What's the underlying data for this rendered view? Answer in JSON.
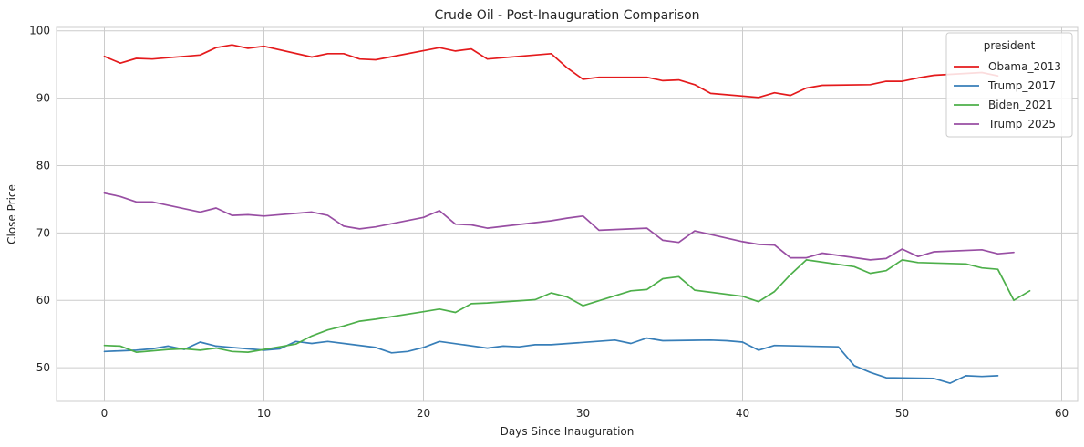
{
  "chart_data": {
    "type": "line",
    "title": "Crude Oil - Post-Inauguration Comparison",
    "xlabel": "Days Since Inauguration",
    "ylabel": "Close Price",
    "xlim": [
      -3,
      61
    ],
    "ylim": [
      45,
      100.5
    ],
    "xticks": [
      0,
      10,
      20,
      30,
      40,
      50,
      60
    ],
    "yticks": [
      50,
      60,
      70,
      80,
      90,
      100
    ],
    "grid": true,
    "legend": {
      "title": "president",
      "placement": "top-right"
    },
    "series": [
      {
        "name": "Obama_2013",
        "color": "#e41a1c",
        "x": [
          0,
          1,
          2,
          3,
          4,
          5,
          6,
          7,
          8,
          9,
          10,
          13,
          14,
          15,
          16,
          17,
          21,
          22,
          23,
          24,
          28,
          29,
          30,
          31,
          34,
          35,
          36,
          37,
          38,
          41,
          42,
          43,
          44,
          45,
          48,
          49,
          50,
          51,
          52,
          55,
          56
        ],
        "y": [
          96.2,
          95.2,
          95.9,
          95.8,
          96.0,
          96.2,
          96.4,
          97.5,
          97.9,
          97.4,
          97.7,
          96.1,
          96.6,
          96.6,
          95.8,
          95.7,
          97.5,
          97.0,
          97.3,
          95.8,
          96.6,
          94.5,
          92.8,
          93.1,
          93.1,
          92.6,
          92.7,
          92.0,
          90.7,
          90.1,
          90.8,
          90.4,
          91.5,
          91.9,
          92.0,
          92.5,
          92.5,
          93.0,
          93.4,
          93.8,
          93.3
        ]
      },
      {
        "name": "Trump_2017",
        "color": "#377eb8",
        "x": [
          0,
          1,
          2,
          3,
          4,
          5,
          6,
          7,
          10,
          11,
          12,
          13,
          14,
          17,
          18,
          19,
          20,
          21,
          24,
          25,
          26,
          27,
          28,
          32,
          33,
          34,
          35,
          38,
          39,
          40,
          41,
          42,
          46,
          47,
          48,
          49,
          52,
          53,
          54,
          55,
          56
        ],
        "y": [
          52.4,
          52.5,
          52.6,
          52.8,
          53.2,
          52.7,
          53.8,
          53.2,
          52.6,
          52.8,
          53.9,
          53.6,
          53.9,
          53.0,
          52.2,
          52.4,
          53.0,
          53.9,
          52.9,
          53.2,
          53.1,
          53.4,
          53.4,
          54.1,
          53.6,
          54.4,
          54.0,
          54.1,
          54.0,
          53.8,
          52.6,
          53.3,
          53.1,
          50.3,
          49.3,
          48.5,
          48.4,
          47.7,
          48.8,
          48.7,
          48.8
        ]
      },
      {
        "name": "Biden_2021",
        "color": "#4daf4a",
        "x": [
          0,
          1,
          2,
          3,
          4,
          5,
          6,
          7,
          8,
          9,
          10,
          11,
          12,
          13,
          14,
          15,
          16,
          17,
          20,
          21,
          22,
          23,
          24,
          27,
          28,
          29,
          30,
          33,
          34,
          35,
          36,
          37,
          40,
          41,
          42,
          43,
          44,
          47,
          48,
          49,
          50,
          51,
          54,
          55,
          56,
          57,
          58
        ],
        "y": [
          53.3,
          53.2,
          52.3,
          52.5,
          52.7,
          52.8,
          52.6,
          52.9,
          52.4,
          52.3,
          52.7,
          53.1,
          53.5,
          54.7,
          55.6,
          56.2,
          56.9,
          57.2,
          58.3,
          58.7,
          58.2,
          59.5,
          59.6,
          60.1,
          61.1,
          60.5,
          59.2,
          61.4,
          61.6,
          63.2,
          63.5,
          61.5,
          60.6,
          59.8,
          61.3,
          63.8,
          66.0,
          65.0,
          64.0,
          64.4,
          66.0,
          65.6,
          65.4,
          64.8,
          64.6,
          60.0,
          61.4
        ]
      },
      {
        "name": "Trump_2025",
        "color": "#984ea3",
        "x": [
          0,
          1,
          2,
          3,
          6,
          7,
          8,
          9,
          10,
          13,
          14,
          15,
          16,
          17,
          20,
          21,
          22,
          23,
          24,
          28,
          29,
          30,
          31,
          34,
          35,
          36,
          37,
          40,
          41,
          42,
          43,
          44,
          45,
          48,
          49,
          50,
          51,
          52,
          55,
          56,
          57
        ],
        "y": [
          75.9,
          75.4,
          74.6,
          74.6,
          73.1,
          73.7,
          72.6,
          72.7,
          72.5,
          73.1,
          72.6,
          71.0,
          70.6,
          70.9,
          72.3,
          73.3,
          71.3,
          71.2,
          70.7,
          71.8,
          72.2,
          72.5,
          70.4,
          70.7,
          68.9,
          68.6,
          70.3,
          68.7,
          68.3,
          68.2,
          66.3,
          66.3,
          67.0,
          66.0,
          66.2,
          67.6,
          66.5,
          67.2,
          67.5,
          66.9,
          67.1
        ]
      }
    ]
  }
}
